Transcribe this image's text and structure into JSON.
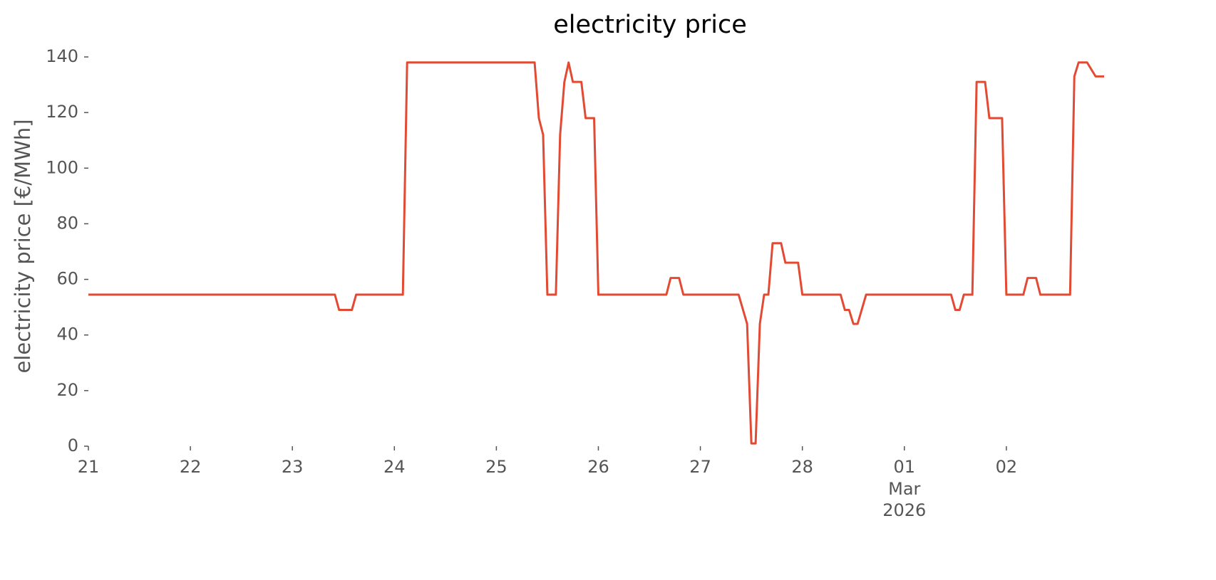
{
  "chart_data": {
    "type": "line",
    "title": "electricity price",
    "ylabel": "electricity price [€/MWh]",
    "x": [
      "2026-02-21 00:00",
      "2026-02-23 10:00",
      "2026-02-23 11:00",
      "2026-02-23 14:00",
      "2026-02-23 15:00",
      "2026-02-24 02:00",
      "2026-02-24 03:00",
      "2026-02-25 09:00",
      "2026-02-25 10:00",
      "2026-02-25 11:00",
      "2026-02-25 12:00",
      "2026-02-25 14:00",
      "2026-02-25 15:00",
      "2026-02-25 16:00",
      "2026-02-25 17:00",
      "2026-02-25 18:00",
      "2026-02-25 20:00",
      "2026-02-25 21:00",
      "2026-02-25 23:00",
      "2026-02-26 00:00",
      "2026-02-26 16:00",
      "2026-02-26 17:00",
      "2026-02-26 19:00",
      "2026-02-26 20:00",
      "2026-02-27 09:00",
      "2026-02-27 11:00",
      "2026-02-27 12:00",
      "2026-02-27 13:00",
      "2026-02-27 14:00",
      "2026-02-27 15:00",
      "2026-02-27 16:00",
      "2026-02-27 17:00",
      "2026-02-27 19:00",
      "2026-02-27 20:00",
      "2026-02-27 23:00",
      "2026-02-28 00:00",
      "2026-02-28 09:00",
      "2026-02-28 10:00",
      "2026-02-28 11:00",
      "2026-02-28 12:00",
      "2026-02-28 13:00",
      "2026-02-28 15:00",
      "2026-03-01 11:00",
      "2026-03-01 12:00",
      "2026-03-01 13:00",
      "2026-03-01 14:00",
      "2026-03-01 16:00",
      "2026-03-01 17:00",
      "2026-03-01 19:00",
      "2026-03-01 20:00",
      "2026-03-01 23:00",
      "2026-03-02 00:00",
      "2026-03-02 04:00",
      "2026-03-02 05:00",
      "2026-03-02 07:00",
      "2026-03-02 08:00",
      "2026-03-02 15:00",
      "2026-03-02 16:00",
      "2026-03-02 17:00",
      "2026-03-02 19:00",
      "2026-03-02 21:00",
      "2026-03-02 23:00"
    ],
    "values": [
      54.5,
      54.5,
      49,
      49,
      54.5,
      54.5,
      138,
      138,
      118,
      112,
      54.5,
      54.5,
      112,
      131,
      138,
      131,
      131,
      118,
      118,
      54.5,
      54.5,
      60.5,
      60.5,
      54.5,
      54.5,
      44,
      1,
      1,
      44,
      54.5,
      54.5,
      73,
      73,
      66,
      66,
      54.5,
      54.5,
      49,
      49,
      44,
      44,
      54.5,
      54.5,
      49,
      49,
      54.5,
      54.5,
      131,
      131,
      118,
      118,
      54.5,
      54.5,
      60.5,
      60.5,
      54.5,
      54.5,
      133,
      138,
      138,
      133,
      133
    ],
    "color": "#e24a33",
    "xlim": [
      "2026-02-21 00:00",
      "2026-03-02 23:00"
    ],
    "xticks": [
      {
        "value": "2026-02-21 00:00",
        "label": "21"
      },
      {
        "value": "2026-02-22 00:00",
        "label": "22"
      },
      {
        "value": "2026-02-23 00:00",
        "label": "23"
      },
      {
        "value": "2026-02-24 00:00",
        "label": "24"
      },
      {
        "value": "2026-02-25 00:00",
        "label": "25"
      },
      {
        "value": "2026-02-26 00:00",
        "label": "26"
      },
      {
        "value": "2026-02-27 00:00",
        "label": "27"
      },
      {
        "value": "2026-02-28 00:00",
        "label": "28"
      },
      {
        "value": "2026-03-01 00:00",
        "label": "01",
        "sublabels": [
          "Mar",
          "2026"
        ]
      },
      {
        "value": "2026-03-02 00:00",
        "label": "02"
      }
    ],
    "ylim": [
      0,
      140
    ],
    "yticks": [
      0,
      20,
      40,
      60,
      80,
      100,
      120,
      140
    ],
    "grid": false
  }
}
